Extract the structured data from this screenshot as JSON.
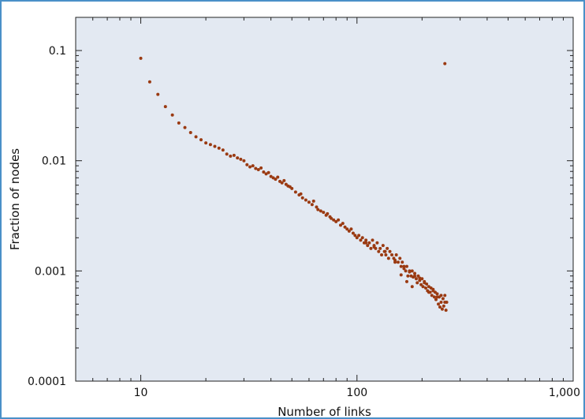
{
  "colors": {
    "frame_border": "#4a90c8",
    "plot_background": "#e3e9f2",
    "point": "#9a3a12",
    "axis": "#222222"
  },
  "chart_data": {
    "type": "scatter",
    "x_scale": "log",
    "y_scale": "log",
    "xlabel": "Number of links",
    "ylabel": "Fraction of nodes",
    "xlim": [
      5,
      1000
    ],
    "ylim": [
      0.0001,
      0.2
    ],
    "grid": false,
    "x_ticks": [
      {
        "value": 10,
        "label": "10"
      },
      {
        "value": 100,
        "label": "100"
      },
      {
        "value": 1000,
        "label": "1,000"
      }
    ],
    "y_ticks": [
      {
        "value": 0.1,
        "label": "0.1"
      },
      {
        "value": 0.01,
        "label": "0.01"
      },
      {
        "value": 0.001,
        "label": "0.001"
      },
      {
        "value": 0.0001,
        "label": "0.0001"
      }
    ],
    "points": [
      [
        10,
        0.085
      ],
      [
        11,
        0.052
      ],
      [
        12,
        0.04
      ],
      [
        13,
        0.031
      ],
      [
        14,
        0.026
      ],
      [
        15,
        0.022
      ],
      [
        16,
        0.02
      ],
      [
        17,
        0.018
      ],
      [
        18,
        0.0165
      ],
      [
        19,
        0.0155
      ],
      [
        20,
        0.0145
      ],
      [
        21,
        0.014
      ],
      [
        22,
        0.0135
      ],
      [
        23,
        0.013
      ],
      [
        24,
        0.0125
      ],
      [
        25,
        0.0115
      ],
      [
        26,
        0.011
      ],
      [
        27,
        0.0112
      ],
      [
        28,
        0.0106
      ],
      [
        29,
        0.0103
      ],
      [
        30,
        0.01
      ],
      [
        31,
        0.0092
      ],
      [
        32,
        0.0088
      ],
      [
        33,
        0.009
      ],
      [
        34,
        0.0085
      ],
      [
        35,
        0.0083
      ],
      [
        36,
        0.0086
      ],
      [
        37,
        0.0079
      ],
      [
        38,
        0.0076
      ],
      [
        39,
        0.0078
      ],
      [
        40,
        0.0072
      ],
      [
        41,
        0.007
      ],
      [
        42,
        0.0068
      ],
      [
        43,
        0.0071
      ],
      [
        44,
        0.0065
      ],
      [
        45,
        0.0063
      ],
      [
        46,
        0.0066
      ],
      [
        47,
        0.0061
      ],
      [
        48,
        0.0059
      ],
      [
        49,
        0.0058
      ],
      [
        50,
        0.0056
      ],
      [
        52,
        0.0052
      ],
      [
        54,
        0.0049
      ],
      [
        55,
        0.005
      ],
      [
        56,
        0.0046
      ],
      [
        58,
        0.0044
      ],
      [
        60,
        0.0042
      ],
      [
        62,
        0.004
      ],
      [
        63,
        0.0043
      ],
      [
        65,
        0.0038
      ],
      [
        66,
        0.0036
      ],
      [
        68,
        0.0035
      ],
      [
        70,
        0.0034
      ],
      [
        72,
        0.0032
      ],
      [
        73,
        0.0033
      ],
      [
        75,
        0.0031
      ],
      [
        76,
        0.003
      ],
      [
        78,
        0.0029
      ],
      [
        80,
        0.0028
      ],
      [
        82,
        0.0029
      ],
      [
        84,
        0.0026
      ],
      [
        86,
        0.0027
      ],
      [
        88,
        0.0025
      ],
      [
        90,
        0.0024
      ],
      [
        92,
        0.0023
      ],
      [
        94,
        0.0024
      ],
      [
        96,
        0.0022
      ],
      [
        98,
        0.0021
      ],
      [
        100,
        0.002
      ],
      [
        102,
        0.0021
      ],
      [
        104,
        0.0019
      ],
      [
        106,
        0.002
      ],
      [
        108,
        0.0018
      ],
      [
        110,
        0.0019
      ],
      [
        112,
        0.0017
      ],
      [
        114,
        0.0018
      ],
      [
        116,
        0.0016
      ],
      [
        118,
        0.0019
      ],
      [
        120,
        0.0017
      ],
      [
        122,
        0.0016
      ],
      [
        124,
        0.0018
      ],
      [
        126,
        0.0015
      ],
      [
        128,
        0.0016
      ],
      [
        130,
        0.0014
      ],
      [
        132,
        0.0017
      ],
      [
        134,
        0.0015
      ],
      [
        136,
        0.0014
      ],
      [
        138,
        0.0016
      ],
      [
        140,
        0.0013
      ],
      [
        142,
        0.0015
      ],
      [
        145,
        0.0014
      ],
      [
        148,
        0.0013
      ],
      [
        150,
        0.0012
      ],
      [
        152,
        0.0014
      ],
      [
        155,
        0.0012
      ],
      [
        158,
        0.0013
      ],
      [
        160,
        0.0011
      ],
      [
        162,
        0.0012
      ],
      [
        165,
        0.0011
      ],
      [
        168,
        0.001
      ],
      [
        170,
        0.0011
      ],
      [
        172,
        0.0009
      ],
      [
        175,
        0.001
      ],
      [
        178,
        0.0009
      ],
      [
        180,
        0.001
      ],
      [
        182,
        0.00088
      ],
      [
        185,
        0.00095
      ],
      [
        188,
        0.00085
      ],
      [
        190,
        0.00078
      ],
      [
        192,
        0.0009
      ],
      [
        195,
        0.00082
      ],
      [
        198,
        0.00075
      ],
      [
        200,
        0.00085
      ],
      [
        202,
        0.00072
      ],
      [
        205,
        0.0008
      ],
      [
        208,
        0.0007
      ],
      [
        210,
        0.00076
      ],
      [
        212,
        0.00066
      ],
      [
        215,
        0.00072
      ],
      [
        218,
        0.00064
      ],
      [
        220,
        0.0007
      ],
      [
        222,
        0.0006
      ],
      [
        225,
        0.00066
      ],
      [
        228,
        0.00058
      ],
      [
        230,
        0.00064
      ],
      [
        232,
        0.00055
      ],
      [
        235,
        0.00062
      ],
      [
        238,
        0.0005
      ],
      [
        240,
        0.00058
      ],
      [
        242,
        0.00047
      ],
      [
        245,
        0.00052
      ],
      [
        248,
        0.00045
      ],
      [
        250,
        0.00056
      ],
      [
        252,
        0.00048
      ],
      [
        255,
        0.0006
      ],
      [
        258,
        0.00044
      ],
      [
        260,
        0.00052
      ],
      [
        215,
        0.00064
      ],
      [
        225,
        0.00068
      ],
      [
        205,
        0.00078
      ],
      [
        195,
        0.00086
      ],
      [
        185,
        0.0009
      ],
      [
        175,
        0.00098
      ],
      [
        165,
        0.00105
      ],
      [
        150,
        0.00125
      ],
      [
        135,
        0.0015
      ],
      [
        120,
        0.00165
      ],
      [
        110,
        0.0018
      ],
      [
        235,
        0.00058
      ],
      [
        245,
        0.0006
      ],
      [
        255,
        0.00052
      ],
      [
        180,
        0.00072
      ],
      [
        170,
        0.0008
      ],
      [
        160,
        0.00092
      ],
      [
        255,
        0.076
      ]
    ]
  }
}
